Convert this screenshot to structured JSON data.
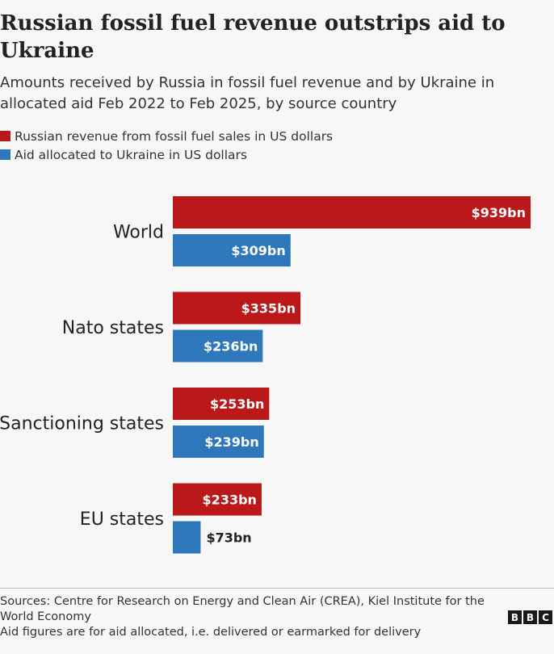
{
  "title": "Russian fossil fuel revenue outstrips aid to Ukraine",
  "subtitle": "Amounts received by Russia in fossil fuel revenue and by Ukraine in allocated aid Feb 2022 to Feb 2025, by source country",
  "legend": [
    {
      "label": "Russian revenue from fossil fuel sales in US dollars",
      "color": "#bb1919"
    },
    {
      "label": "Aid allocated to Ukraine in US dollars",
      "color": "#2e77bb"
    }
  ],
  "chart_data": {
    "type": "bar",
    "orientation": "horizontal",
    "categories": [
      "World",
      "Nato states",
      "Sanctioning states",
      "EU states"
    ],
    "series": [
      {
        "name": "Russian revenue from fossil fuel sales in US dollars",
        "color": "#bb1919",
        "values": [
          939,
          335,
          253,
          233
        ],
        "labels": [
          "$939bn",
          "$335bn",
          "$253bn",
          "$233bn"
        ]
      },
      {
        "name": "Aid allocated to Ukraine in US dollars",
        "color": "#2e77bb",
        "values": [
          309,
          236,
          239,
          73
        ],
        "labels": [
          "$309bn",
          "$236bn",
          "$239bn",
          "$73bn"
        ]
      }
    ],
    "xlim": [
      0,
      939
    ],
    "grid": false,
    "legend_position": "top-left"
  },
  "footer": {
    "sources": "Sources: Centre for Research on Energy and Clean Air (CREA), Kiel Institute for the World Economy",
    "note": "Aid figures are for aid allocated, i.e. delivered or earmarked for delivery"
  },
  "logo": [
    "B",
    "B",
    "C"
  ]
}
